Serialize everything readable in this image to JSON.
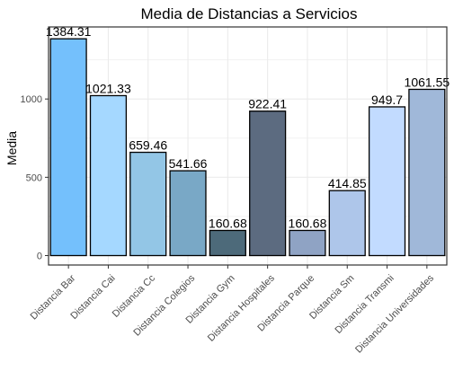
{
  "chart_data": {
    "type": "bar",
    "title": "Media de Distancias a Servicios",
    "xlabel": "",
    "ylabel": "Media",
    "ylim": [
      0,
      1460
    ],
    "yticks": [
      0,
      500,
      1000
    ],
    "grid": true,
    "categories": [
      "Distancia Bar",
      "Distancia Cai",
      "Distancia Cc",
      "Distancia Colegios",
      "Distancia Gym",
      "Distancia Hospitales",
      "Distancia Parque",
      "Distancia Sm",
      "Distancia Transmi",
      "Distancia Universidades"
    ],
    "values": [
      1384.31,
      1021.33,
      659.46,
      541.66,
      160.68,
      922.41,
      160.68,
      414.85,
      949.7,
      1061.55
    ],
    "value_labels": [
      "1384.31",
      "1021.33",
      "659.46",
      "541.66",
      "160.68",
      "922.41",
      "160.68",
      "414.85",
      "949.7",
      "1061.55"
    ],
    "colors": [
      "#74c0fc",
      "#a5d8ff",
      "#93c6e6",
      "#79a8c6",
      "#4d6a7a",
      "#5c6b80",
      "#8fa3c4",
      "#aec6ea",
      "#c2dbff",
      "#a0b8d9"
    ],
    "bar_outline": "#000000",
    "grid_color": "#ebebeb",
    "panel_border": "#333333"
  }
}
